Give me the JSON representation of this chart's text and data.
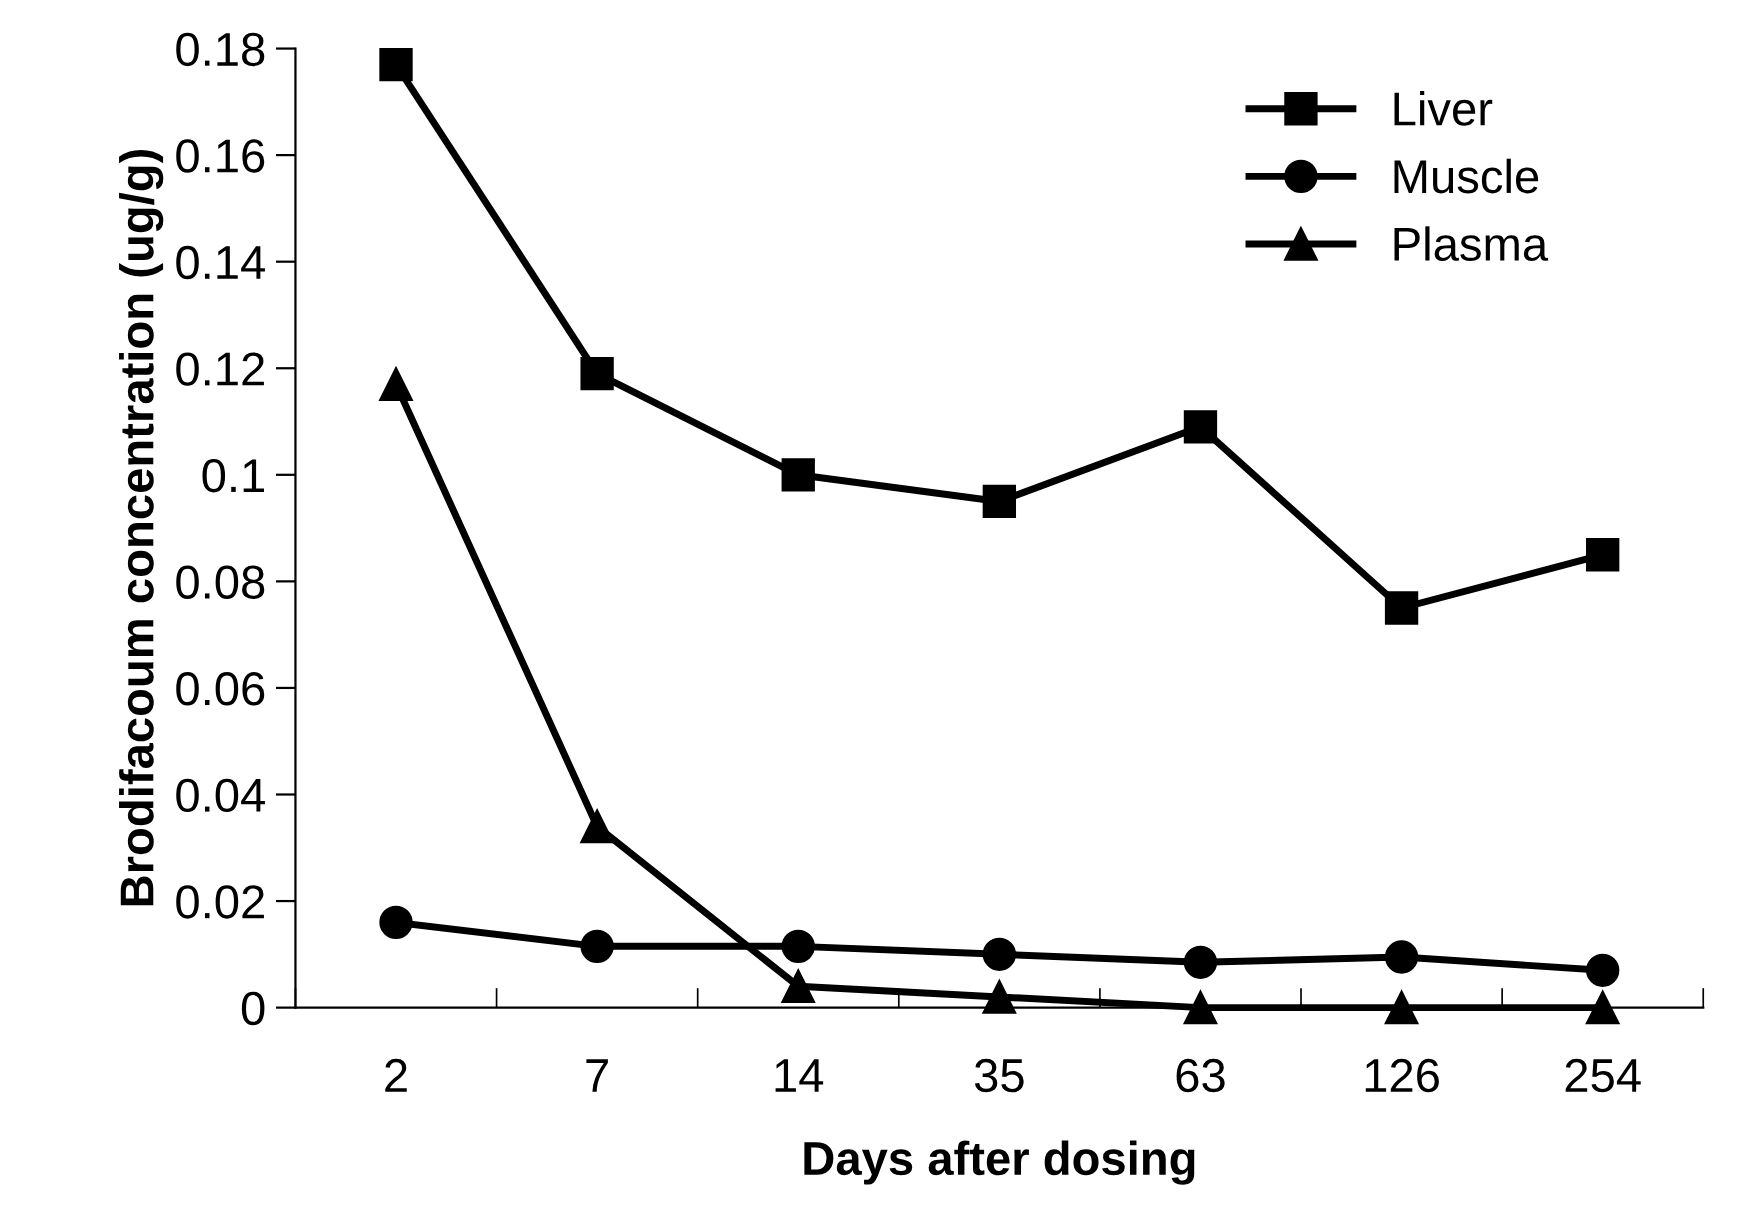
{
  "chart_data": {
    "type": "line",
    "xlabel": "Days after dosing",
    "ylabel": "Brodifacoum concentration (ug/g)",
    "categories": [
      "2",
      "7",
      "14",
      "35",
      "63",
      "126",
      "254"
    ],
    "series": [
      {
        "name": "Liver",
        "color": "#000000",
        "marker": "square",
        "values": [
          0.177,
          0.119,
          0.1,
          0.095,
          0.109,
          0.075,
          0.085
        ]
      },
      {
        "name": "Muscle",
        "color": "#000000",
        "marker": "circle",
        "values": [
          0.016,
          0.0115,
          0.0115,
          0.01,
          0.0085,
          0.0095,
          0.007
        ]
      },
      {
        "name": "Plasma",
        "color": "#000000",
        "marker": "triangle",
        "values": [
          0.117,
          0.034,
          0.004,
          0.002,
          0,
          0,
          0
        ]
      }
    ],
    "ylim": [
      0,
      0.18
    ],
    "yticks": [
      0,
      0.02,
      0.04,
      0.06,
      0.08,
      0.1,
      0.12,
      0.14,
      0.16,
      0.18
    ],
    "grid": false,
    "legend": "top right",
    "line_style": "solid"
  }
}
